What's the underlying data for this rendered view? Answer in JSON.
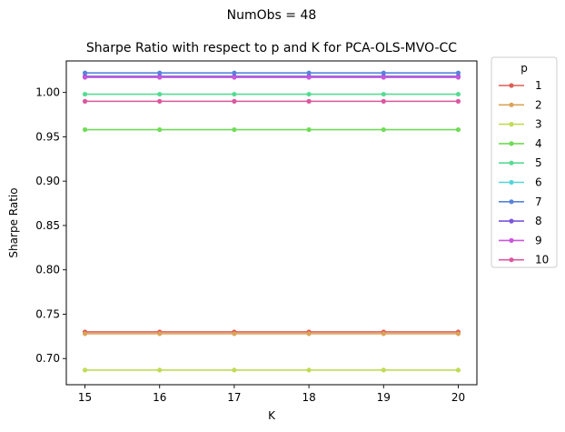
{
  "suptitle": "NumObs = 48",
  "chart_data": {
    "type": "line",
    "title": "Sharpe Ratio with respect to p and K for PCA-OLS-MVO-CC",
    "xlabel": "K",
    "ylabel": "Sharpe Ratio",
    "x": [
      15,
      16,
      17,
      18,
      19,
      20
    ],
    "xlim": [
      14.75,
      20.25
    ],
    "ylim": [
      0.6705,
      1.0355
    ],
    "yticks": [
      0.7,
      0.75,
      0.8,
      0.85,
      0.9,
      0.95,
      1.0
    ],
    "ytick_labels": [
      "0.70",
      "0.75",
      "0.80",
      "0.85",
      "0.90",
      "0.95",
      "1.00"
    ],
    "xtick_labels": [
      "15",
      "16",
      "17",
      "18",
      "19",
      "20"
    ],
    "grid": false,
    "legend": {
      "title": "p",
      "placement": "outside-right-top"
    },
    "series": [
      {
        "name": "1",
        "color": "#db5f57",
        "values": [
          0.73,
          0.73,
          0.73,
          0.73,
          0.73,
          0.73
        ]
      },
      {
        "name": "2",
        "color": "#dba457",
        "values": [
          0.728,
          0.728,
          0.728,
          0.728,
          0.728,
          0.728
        ]
      },
      {
        "name": "3",
        "color": "#c0db57",
        "values": [
          0.687,
          0.687,
          0.687,
          0.687,
          0.687,
          0.687
        ]
      },
      {
        "name": "4",
        "color": "#6fdb57",
        "values": [
          0.958,
          0.958,
          0.958,
          0.958,
          0.958,
          0.958
        ]
      },
      {
        "name": "5",
        "color": "#57db94",
        "values": [
          0.998,
          0.998,
          0.998,
          0.998,
          0.998,
          0.998
        ]
      },
      {
        "name": "6",
        "color": "#57d3db",
        "values": [
          1.018,
          1.018,
          1.018,
          1.018,
          1.018,
          1.018
        ]
      },
      {
        "name": "7",
        "color": "#5784db",
        "values": [
          1.022,
          1.022,
          1.022,
          1.022,
          1.022,
          1.022
        ]
      },
      {
        "name": "8",
        "color": "#7957db",
        "values": [
          1.018,
          1.018,
          1.018,
          1.018,
          1.018,
          1.018
        ]
      },
      {
        "name": "9",
        "color": "#c957db",
        "values": [
          1.017,
          1.017,
          1.017,
          1.017,
          1.017,
          1.017
        ]
      },
      {
        "name": "10",
        "color": "#db579e",
        "values": [
          0.99,
          0.99,
          0.99,
          0.99,
          0.99,
          0.99
        ]
      }
    ]
  }
}
